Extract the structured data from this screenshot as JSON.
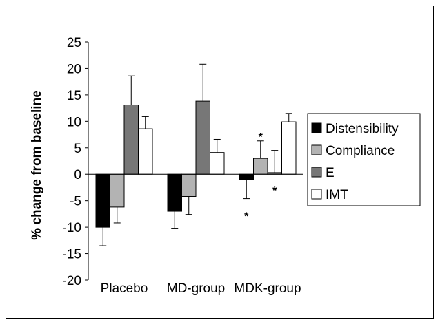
{
  "chart_data": {
    "type": "bar",
    "ylabel": "% change from baseline",
    "xlabel": "",
    "ylim": [
      -20,
      25
    ],
    "yticks": [
      25,
      20,
      15,
      10,
      5,
      0,
      -5,
      -10,
      -15,
      -20
    ],
    "grid": false,
    "legend_position": "right",
    "categories": [
      "Placebo",
      "MD-group",
      "MDK-group"
    ],
    "series": [
      {
        "name": "Distensibility",
        "values": [
          -10.0,
          -7.0,
          -1.0
        ],
        "errors": [
          3.5,
          3.3,
          3.6
        ],
        "color": "#000000"
      },
      {
        "name": "Compliance",
        "values": [
          -6.2,
          -4.2,
          3.0
        ],
        "errors": [
          3.0,
          3.4,
          3.3
        ],
        "color": "#b3b3b3"
      },
      {
        "name": "E",
        "values": [
          13.1,
          13.8,
          0.3
        ],
        "errors": [
          5.5,
          7.0,
          4.2
        ],
        "color": "#777777"
      },
      {
        "name": "IMT",
        "values": [
          8.6,
          4.1,
          9.9
        ],
        "errors": [
          2.3,
          2.5,
          1.6
        ],
        "color": "#ffffff"
      }
    ],
    "annotations": [
      {
        "text": "*",
        "series": "Distensibility",
        "category": "MDK-group",
        "y": -7.2
      },
      {
        "text": "*",
        "series": "Compliance",
        "category": "MDK-group",
        "y": 7.8
      },
      {
        "text": "*",
        "series": "E",
        "category": "MDK-group",
        "y": -2.3
      }
    ]
  }
}
